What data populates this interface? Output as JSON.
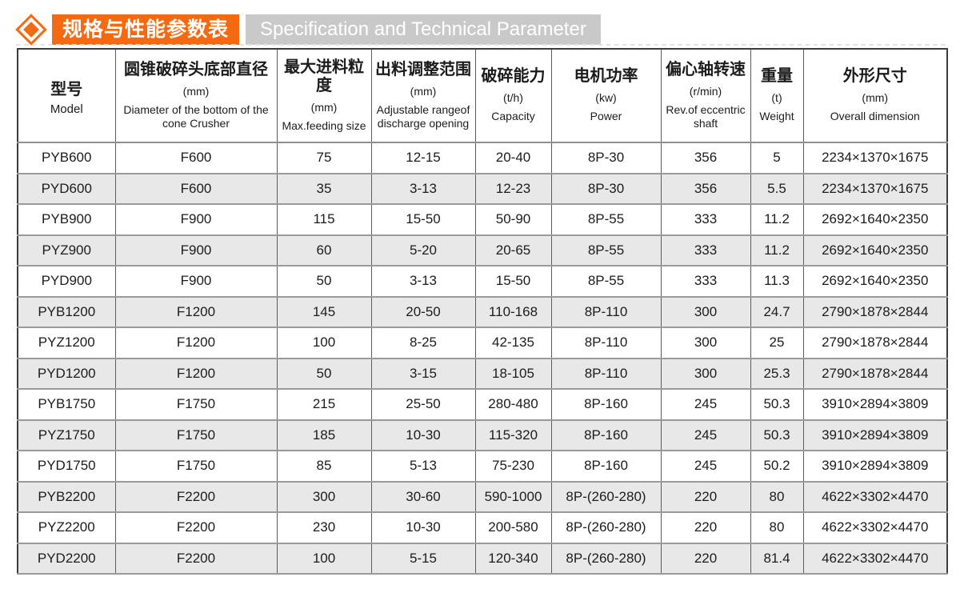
{
  "title": {
    "zh": "规格与性能参数表",
    "en": "Specification and Technical Parameter"
  },
  "colors": {
    "accent_orange": "#f56a10",
    "title_gray": "#c9c9c9",
    "row_alt_gray": "#e8e8e8",
    "grid_line": "#9a9a9a",
    "outer_border": "#3c3c3c"
  },
  "icons": {
    "bullet": "diamond-icon"
  },
  "table": {
    "columns": [
      {
        "zh": "型号",
        "unit": "",
        "en": "Model"
      },
      {
        "zh": "圆锥破碎头底部直径",
        "unit": "(mm)",
        "en": "Diameter of the bottom of the cone Crusher"
      },
      {
        "zh": "最大进料粒度",
        "unit": "(mm)",
        "en": "Max.feeding size"
      },
      {
        "zh": "出料调整范围",
        "unit": "(mm)",
        "en": "Adjustable rangeof discharge opening"
      },
      {
        "zh": "破碎能力",
        "unit": "(t/h)",
        "en": "Capacity"
      },
      {
        "zh": "电机功率",
        "unit": "(kw)",
        "en": "Power"
      },
      {
        "zh": "偏心轴转速",
        "unit": "(r/min)",
        "en": "Rev.of eccentric shaft"
      },
      {
        "zh": "重量",
        "unit": "(t)",
        "en": "Weight"
      },
      {
        "zh": "外形尺寸",
        "unit": "(mm)",
        "en": "Overall dimension"
      }
    ],
    "rows": [
      [
        "PYB600",
        "F600",
        "75",
        "12-15",
        "20-40",
        "8P-30",
        "356",
        "5",
        "2234×1370×1675"
      ],
      [
        "PYD600",
        "F600",
        "35",
        "3-13",
        "12-23",
        "8P-30",
        "356",
        "5.5",
        "2234×1370×1675"
      ],
      [
        "PYB900",
        "F900",
        "115",
        "15-50",
        "50-90",
        "8P-55",
        "333",
        "11.2",
        "2692×1640×2350"
      ],
      [
        "PYZ900",
        "F900",
        "60",
        "5-20",
        "20-65",
        "8P-55",
        "333",
        "11.2",
        "2692×1640×2350"
      ],
      [
        "PYD900",
        "F900",
        "50",
        "3-13",
        "15-50",
        "8P-55",
        "333",
        "11.3",
        "2692×1640×2350"
      ],
      [
        "PYB1200",
        "F1200",
        "145",
        "20-50",
        "110-168",
        "8P-110",
        "300",
        "24.7",
        "2790×1878×2844"
      ],
      [
        "PYZ1200",
        "F1200",
        "100",
        "8-25",
        "42-135",
        "8P-110",
        "300",
        "25",
        "2790×1878×2844"
      ],
      [
        "PYD1200",
        "F1200",
        "50",
        "3-15",
        "18-105",
        "8P-110",
        "300",
        "25.3",
        "2790×1878×2844"
      ],
      [
        "PYB1750",
        "F1750",
        "215",
        "25-50",
        "280-480",
        "8P-160",
        "245",
        "50.3",
        "3910×2894×3809"
      ],
      [
        "PYZ1750",
        "F1750",
        "185",
        "10-30",
        "115-320",
        "8P-160",
        "245",
        "50.3",
        "3910×2894×3809"
      ],
      [
        "PYD1750",
        "F1750",
        "85",
        "5-13",
        "75-230",
        "8P-160",
        "245",
        "50.2",
        "3910×2894×3809"
      ],
      [
        "PYB2200",
        "F2200",
        "300",
        "30-60",
        "590-1000",
        "8P-(260-280)",
        "220",
        "80",
        "4622×3302×4470"
      ],
      [
        "PYZ2200",
        "F2200",
        "230",
        "10-30",
        "200-580",
        "8P-(260-280)",
        "220",
        "80",
        "4622×3302×4470"
      ],
      [
        "PYD2200",
        "F2200",
        "100",
        "5-15",
        "120-340",
        "8P-(260-280)",
        "220",
        "81.4",
        "4622×3302×4470"
      ]
    ]
  }
}
